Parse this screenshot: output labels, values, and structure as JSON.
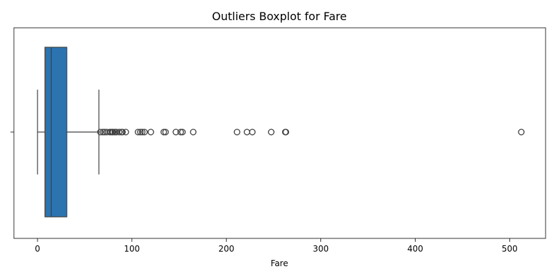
{
  "chart_data": {
    "type": "boxplot",
    "title": "Outliers Boxplot for Fare",
    "xlabel": "Fare",
    "ylabel": "",
    "xlim": [
      -25,
      538
    ],
    "xticks": [
      0,
      100,
      200,
      300,
      400,
      500
    ],
    "grid": false,
    "legend": "none",
    "box_color": "#2b74b0",
    "line_color": "#3f3f3f",
    "stats": {
      "whisker_low": 0,
      "q1": 7.9,
      "median": 14.45,
      "q3": 31.0,
      "whisker_high": 65.0
    },
    "outliers": [
      66.6,
      69.3,
      71.0,
      73.5,
      76.7,
      77.3,
      78.85,
      79.2,
      80.0,
      81.9,
      82.2,
      83.5,
      86.5,
      89.1,
      90.0,
      93.5,
      106.4,
      108.9,
      110.9,
      113.3,
      120.0,
      133.7,
      135.6,
      146.5,
      151.6,
      153.5,
      164.9,
      211.3,
      221.8,
      227.5,
      247.5,
      262.4,
      263.0,
      512.3
    ]
  }
}
